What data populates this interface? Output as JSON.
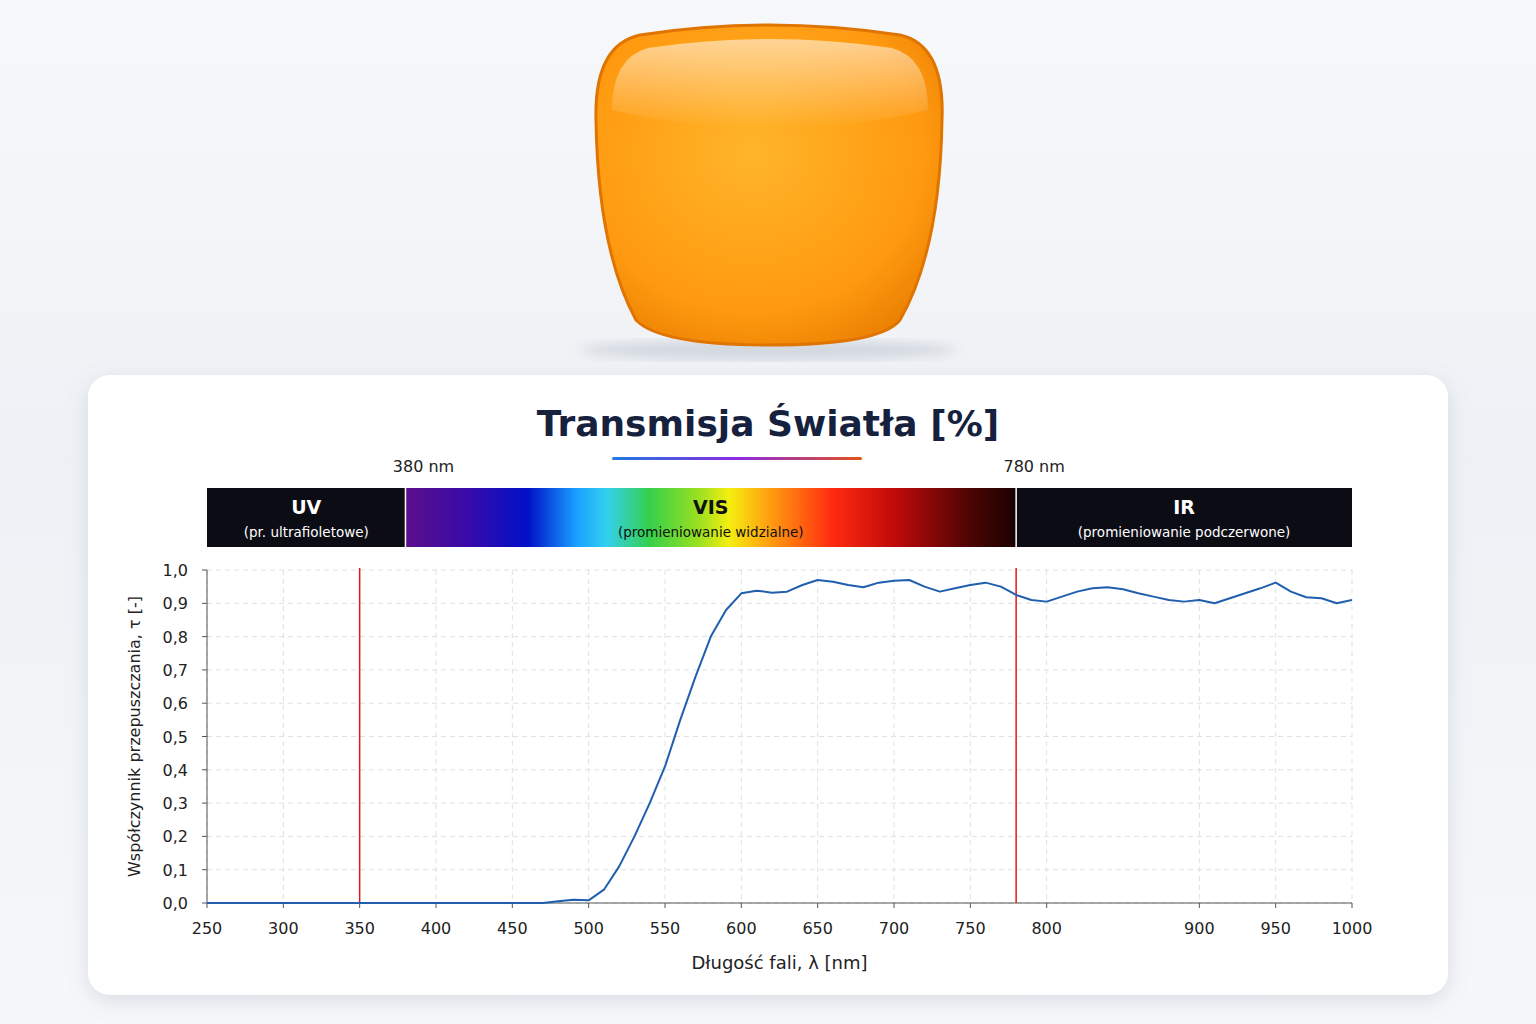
{
  "chart_data": {
    "type": "line",
    "title": "Transmisja Światła [%]",
    "x_label": "Długość fali, λ [nm]",
    "y_label": "Współczynnik przepuszczania, τ [-]",
    "bands": [
      {
        "label": "UV",
        "sublabel": "(pr. ultrafioletowe)"
      },
      {
        "label": "VIS",
        "sublabel": "(promieniowanie widzialne)"
      },
      {
        "label": "IR",
        "sublabel": "(promieniowanie podczerwone)"
      }
    ],
    "boundaries": [
      {
        "value": 380,
        "label": "380 nm"
      },
      {
        "value": 780,
        "label": "780 nm"
      }
    ],
    "reference_lines": [
      350,
      780
    ],
    "xlim": [
      250,
      1000
    ],
    "xticks": [
      250,
      300,
      350,
      400,
      450,
      500,
      550,
      600,
      650,
      700,
      750,
      800,
      900,
      950,
      1000
    ],
    "ylim": [
      0,
      1
    ],
    "yticks": [
      {
        "value": 0,
        "label": "0,0"
      },
      {
        "value": 0.1,
        "label": "0,1"
      },
      {
        "value": 0.2,
        "label": "0,2"
      },
      {
        "value": 0.3,
        "label": "0,3"
      },
      {
        "value": 0.4,
        "label": "0,4"
      },
      {
        "value": 0.5,
        "label": "0,5"
      },
      {
        "value": 0.6,
        "label": "0,6"
      },
      {
        "value": 0.7,
        "label": "0,7"
      },
      {
        "value": 0.8,
        "label": "0,8"
      },
      {
        "value": 0.9,
        "label": "0,9"
      },
      {
        "value": 1,
        "label": "1,0"
      }
    ],
    "grid": true,
    "color": "#1f5fae",
    "x": [
      250,
      300,
      350,
      400,
      450,
      470,
      480,
      490,
      500,
      510,
      520,
      530,
      540,
      550,
      560,
      570,
      580,
      590,
      600,
      610,
      620,
      630,
      640,
      650,
      660,
      670,
      680,
      690,
      700,
      710,
      720,
      730,
      740,
      750,
      760,
      770,
      780,
      790,
      800,
      810,
      820,
      830,
      840,
      850,
      860,
      870,
      880,
      890,
      900,
      910,
      920,
      930,
      940,
      950,
      960,
      970,
      980,
      990,
      1000
    ],
    "values": [
      0,
      0,
      0,
      0,
      0,
      0,
      0.005,
      0.01,
      0.008,
      0.04,
      0.11,
      0.2,
      0.3,
      0.41,
      0.55,
      0.68,
      0.8,
      0.88,
      0.93,
      0.938,
      0.932,
      0.935,
      0.955,
      0.97,
      0.965,
      0.955,
      0.948,
      0.962,
      0.968,
      0.97,
      0.95,
      0.935,
      0.945,
      0.955,
      0.962,
      0.95,
      0.925,
      0.91,
      0.905,
      0.92,
      0.935,
      0.945,
      0.948,
      0.942,
      0.93,
      0.92,
      0.91,
      0.905,
      0.91,
      0.9,
      0.915,
      0.93,
      0.945,
      0.962,
      0.935,
      0.918,
      0.915,
      0.9,
      0.91
    ]
  }
}
